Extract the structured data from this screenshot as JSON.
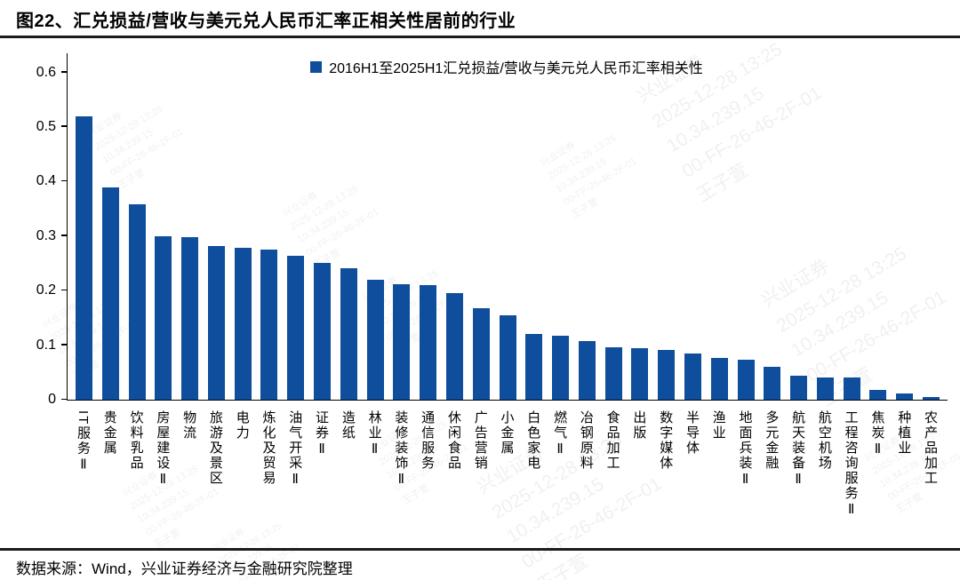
{
  "title": "图22、汇兑损益/营收与美元兑人民币汇率正相关性居前的行业",
  "legend_label": "2016H1至2025H1汇兑损益/营收与美元兑人民币汇率相关性",
  "footer": "数据来源：Wind，兴业证券经济与金融研究院整理",
  "colors": {
    "bar": "#0E4E9C",
    "axis": "#000000",
    "title_text": "#000000",
    "watermark": "rgba(40,40,40,0.07)"
  },
  "watermark_lines": [
    "兴业证券",
    "2025-12-28 13:25",
    "10.34.239.15",
    "00-FF-26-46-2F-01",
    "王子萱"
  ],
  "chart_data": {
    "type": "bar",
    "title": "图22、汇兑损益/营收与美元兑人民币汇率正相关性居前的行业",
    "legend": [
      "2016H1至2025H1汇兑损益/营收与美元兑人民币汇率相关性"
    ],
    "legend_position": "top-center",
    "grid": false,
    "xlabel": "",
    "ylabel": "",
    "ylim": [
      0,
      0.6
    ],
    "ytick_labels": [
      "0",
      "0.1",
      "0.2",
      "0.3",
      "0.4",
      "0.5",
      "0.6"
    ],
    "categories": [
      "IT服务Ⅱ",
      "贵金属",
      "饮料乳品",
      "房屋建设Ⅱ",
      "物流",
      "旅游及景区",
      "电力",
      "炼化及贸易",
      "油气开采Ⅱ",
      "证券Ⅱ",
      "造纸",
      "林业Ⅱ",
      "装修装饰Ⅱ",
      "通信服务",
      "休闲食品",
      "广告营销",
      "小金属",
      "白色家电",
      "燃气Ⅱ",
      "冶钢原料",
      "食品加工",
      "出版",
      "数字媒体",
      "半导体",
      "渔业",
      "地面兵装Ⅱ",
      "多元金融",
      "航天装备Ⅱ",
      "航空机场",
      "工程咨询服务Ⅱ",
      "焦炭Ⅱ",
      "种植业",
      "农产品加工"
    ],
    "series": [
      {
        "name": "2016H1至2025H1汇兑损益/营收与美元兑人民币汇率相关性",
        "values": [
          0.52,
          0.39,
          0.358,
          0.299,
          0.298,
          0.281,
          0.279,
          0.275,
          0.264,
          0.251,
          0.241,
          0.22,
          0.212,
          0.21,
          0.195,
          0.168,
          0.154,
          0.121,
          0.118,
          0.108,
          0.096,
          0.094,
          0.091,
          0.085,
          0.077,
          0.074,
          0.06,
          0.044,
          0.041,
          0.04,
          0.018,
          0.012,
          0.005
        ]
      }
    ]
  }
}
